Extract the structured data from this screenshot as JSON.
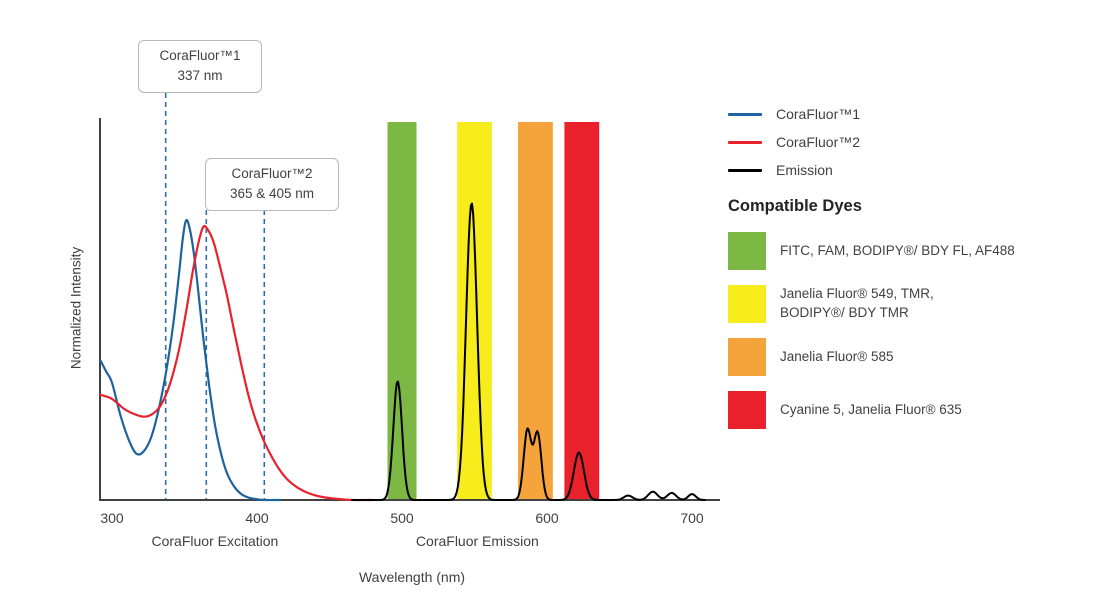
{
  "chart_data": {
    "type": "line",
    "title": "",
    "xlabel": "Wavelength (nm)",
    "ylabel": "Normalized Intensity",
    "xlim": [
      292,
      720
    ],
    "x_ticks": [
      300,
      400,
      500,
      600,
      700
    ],
    "x_axis_captions": [
      {
        "text": "CoraFluor Excitation",
        "center_nm": 371
      },
      {
        "text": "CoraFluor Emission",
        "center_nm": 552
      }
    ],
    "dashed_line_color": "#2f6da8",
    "annotations": [
      {
        "title": "CoraFluor™1",
        "value": "337 nm",
        "lines_nm": [
          337
        ]
      },
      {
        "title": "CoraFluor™2",
        "value": "365 & 405 nm",
        "lines_nm": [
          365,
          405
        ]
      }
    ],
    "excitation_series": [
      {
        "name": "CoraFluor™1",
        "color": "#1f639e",
        "scale": 0.94,
        "points": [
          [
            292,
            0.5
          ],
          [
            296,
            0.46
          ],
          [
            300,
            0.42
          ],
          [
            306,
            0.3
          ],
          [
            312,
            0.21
          ],
          [
            317,
            0.165
          ],
          [
            322,
            0.175
          ],
          [
            327,
            0.225
          ],
          [
            332,
            0.32
          ],
          [
            337,
            0.45
          ],
          [
            342,
            0.62
          ],
          [
            346,
            0.8
          ],
          [
            349,
            0.945
          ],
          [
            351,
            1.0
          ],
          [
            353,
            0.985
          ],
          [
            356,
            0.9
          ],
          [
            359,
            0.77
          ],
          [
            363,
            0.58
          ],
          [
            367,
            0.41
          ],
          [
            371,
            0.27
          ],
          [
            375,
            0.17
          ],
          [
            379,
            0.1
          ],
          [
            384,
            0.05
          ],
          [
            389,
            0.022
          ],
          [
            394,
            0.009
          ],
          [
            400,
            0.003
          ],
          [
            406,
            0.0
          ],
          [
            416,
            0.0
          ]
        ]
      },
      {
        "name": "CoraFluor™2",
        "color": "#e8212b",
        "scale": 0.92,
        "points": [
          [
            292,
            0.385
          ],
          [
            300,
            0.37
          ],
          [
            308,
            0.335
          ],
          [
            315,
            0.315
          ],
          [
            322,
            0.305
          ],
          [
            328,
            0.315
          ],
          [
            334,
            0.35
          ],
          [
            340,
            0.425
          ],
          [
            346,
            0.545
          ],
          [
            351,
            0.685
          ],
          [
            356,
            0.845
          ],
          [
            360,
            0.95
          ],
          [
            363,
            1.0
          ],
          [
            366,
            0.99
          ],
          [
            370,
            0.945
          ],
          [
            374,
            0.865
          ],
          [
            379,
            0.755
          ],
          [
            384,
            0.625
          ],
          [
            389,
            0.5
          ],
          [
            394,
            0.385
          ],
          [
            399,
            0.295
          ],
          [
            404,
            0.225
          ],
          [
            409,
            0.17
          ],
          [
            415,
            0.115
          ],
          [
            421,
            0.075
          ],
          [
            428,
            0.045
          ],
          [
            436,
            0.024
          ],
          [
            445,
            0.011
          ],
          [
            455,
            0.004
          ],
          [
            466,
            0.0
          ],
          [
            480,
            0.0
          ]
        ]
      }
    ],
    "emission_series": {
      "name": "Emission",
      "color": "#000000",
      "range": [
        465,
        710
      ],
      "peaks": [
        {
          "c": 497,
          "h": 0.4,
          "w": 3.0
        },
        {
          "c": 548,
          "h": 1.0,
          "w": 3.8
        },
        {
          "c": 586.5,
          "h": 0.235,
          "w": 2.6
        },
        {
          "c": 593.5,
          "h": 0.225,
          "w": 2.6
        },
        {
          "c": 622,
          "h": 0.16,
          "w": 3.5
        },
        {
          "c": 656,
          "h": 0.015,
          "w": 3.0
        },
        {
          "c": 673,
          "h": 0.028,
          "w": 3.2
        },
        {
          "c": 686,
          "h": 0.024,
          "w": 3.0
        },
        {
          "c": 700,
          "h": 0.02,
          "w": 2.6
        }
      ]
    },
    "filter_bands": [
      {
        "dyes": "FITC, FAM, BODIPY®/ BDY FL, AF488",
        "color": "#7cb843",
        "from_nm": 490,
        "to_nm": 510
      },
      {
        "dyes": "Janelia Fluor® 549, TMR,\nBODIPY®/ BDY TMR",
        "color": "#f7ec1c",
        "from_nm": 538,
        "to_nm": 562
      },
      {
        "dyes": "Janelia Fluor® 585",
        "color": "#f5a33b",
        "from_nm": 580,
        "to_nm": 604
      },
      {
        "dyes": "Cyanine 5, Janelia Fluor® 635",
        "color": "#e8212b",
        "from_nm": 612,
        "to_nm": 636
      }
    ]
  },
  "legend": {
    "items": [
      {
        "label": "CoraFluor™1",
        "color": "#1f639e"
      },
      {
        "label": "CoraFluor™2",
        "color": "#e8212b"
      },
      {
        "label": "Emission",
        "color": "#000000"
      }
    ],
    "compatible_dyes_heading": "Compatible Dyes"
  }
}
